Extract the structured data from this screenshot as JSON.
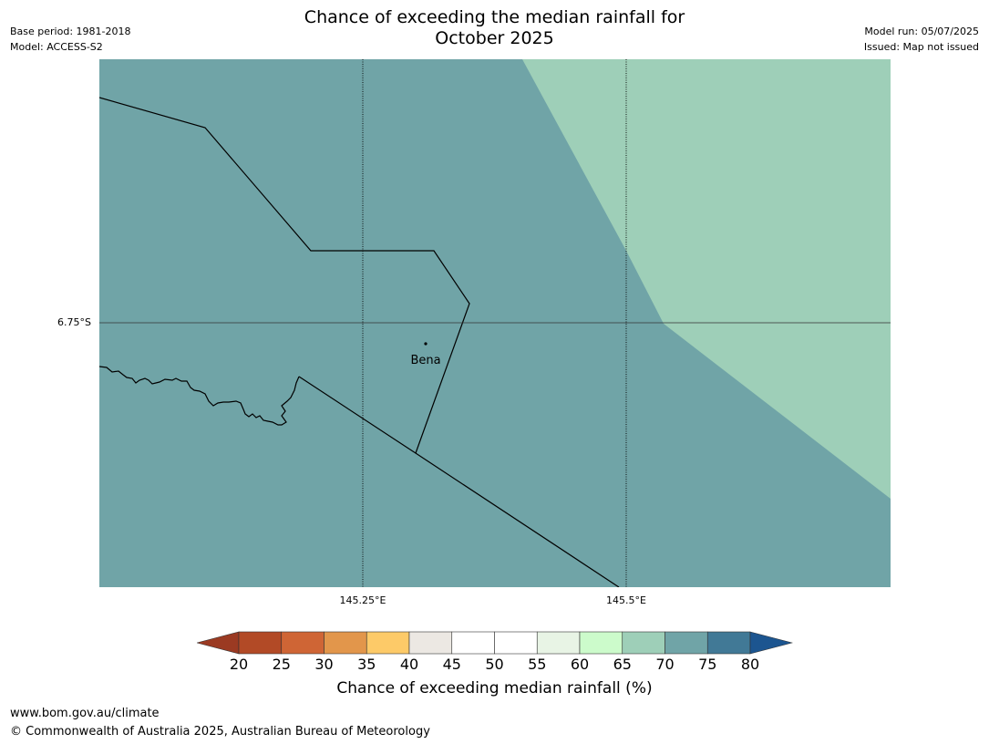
{
  "header": {
    "title_line1": "Chance of exceeding the median rainfall for",
    "title_line2": "October 2025",
    "base_period": "Base period: 1981-2018",
    "model": "Model: ACCESS-S2",
    "model_run": "Model run: 05/07/2025",
    "issued": "Issued: Map not issued"
  },
  "map": {
    "lat_label": "6.75°S",
    "lon_labels": [
      "145.25°E",
      "145.5°E"
    ],
    "place": "Bena",
    "zones": [
      {
        "category": "70-75",
        "color": "#70a4a7"
      },
      {
        "category": "65-70",
        "color": "#9ecfb8"
      }
    ]
  },
  "colorbar": {
    "label": "Chance of exceeding median rainfall (%)",
    "ticks": [
      "20",
      "25",
      "30",
      "35",
      "40",
      "45",
      "50",
      "55",
      "60",
      "65",
      "70",
      "75",
      "80"
    ],
    "under_color": "#9b3a22",
    "over_color": "#1c5590",
    "colors": [
      "#b24a26",
      "#cf6535",
      "#e2964b",
      "#fdca68",
      "#ece8e3",
      "#ffffff",
      "#ffffff",
      "#e8f4e5",
      "#ccfbcb",
      "#9ecfb8",
      "#70a4a7",
      "#417996"
    ]
  },
  "footer": {
    "url": "www.bom.gov.au/climate",
    "copyright": "© Commonwealth of Australia 2025, Australian Bureau of Meteorology"
  }
}
